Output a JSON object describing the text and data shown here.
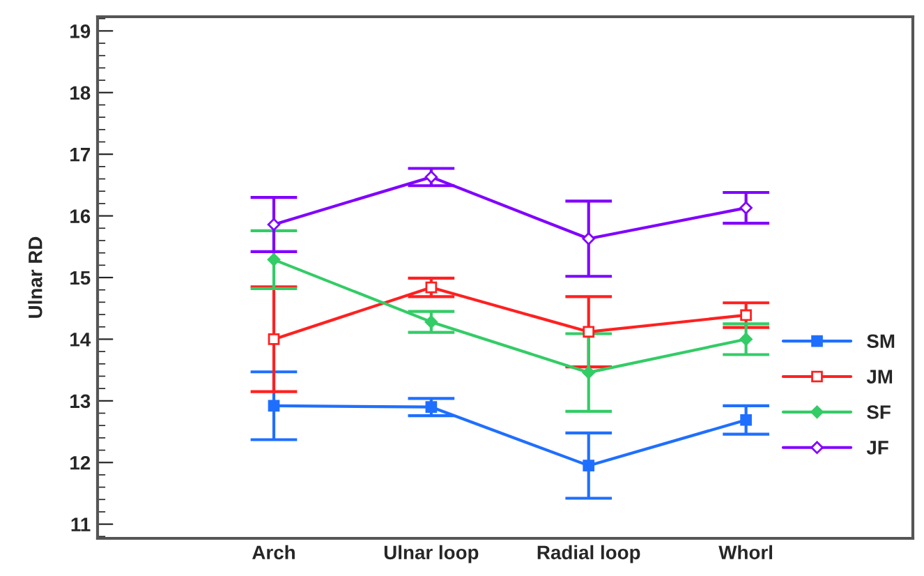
{
  "chart_data": {
    "type": "line",
    "ylabel": "Ulnar RD",
    "categories": [
      "Arch",
      "Ulnar loop",
      "Radial loop",
      "Whorl"
    ],
    "series": [
      {
        "name": "SM",
        "color": "#1f6fff",
        "marker": "square",
        "values": [
          12.92,
          12.9,
          11.95,
          12.69
        ],
        "errors": [
          0.55,
          0.14,
          0.53,
          0.23
        ]
      },
      {
        "name": "JM",
        "color": "#ff2020",
        "marker": "square",
        "values": [
          14.0,
          14.84,
          14.12,
          14.39
        ],
        "errors": [
          0.85,
          0.15,
          0.57,
          0.2
        ]
      },
      {
        "name": "SF",
        "color": "#33cc66",
        "marker": "diamond",
        "values": [
          15.29,
          14.28,
          13.46,
          14.0
        ],
        "errors": [
          0.47,
          0.17,
          0.63,
          0.25
        ]
      },
      {
        "name": "JF",
        "color": "#8000ff",
        "marker": "diamond",
        "values": [
          15.86,
          16.63,
          15.63,
          16.13
        ],
        "errors": [
          0.44,
          0.14,
          0.61,
          0.25
        ]
      }
    ],
    "ylim": [
      10.77,
      19.23
    ],
    "yticks": [
      11,
      12,
      13,
      14,
      15,
      16,
      17,
      18,
      19
    ],
    "legend": "bottom right",
    "grid": false
  }
}
